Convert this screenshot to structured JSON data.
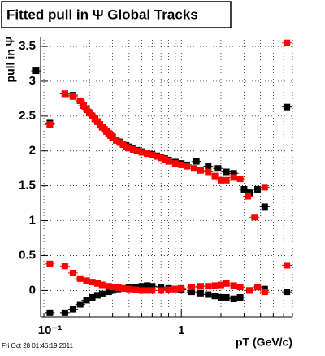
{
  "chart_data": {
    "type": "scatter",
    "title": "Fitted pull in Ψ   Global Tracks",
    "y_label": "pull in Ψ",
    "x_label": "pT (GeV/c)",
    "timestamp": "Fri Oct 28 01:46:19 2011",
    "x_log": true,
    "grid": true,
    "xlim": [
      0.085,
      7
    ],
    "ylim": [
      -0.38,
      3.64
    ],
    "xticks": [
      {
        "value": 0.1,
        "label": "10⁻¹"
      },
      1
    ],
    "xminor": [
      0.09,
      0.2,
      0.3,
      0.4,
      0.5,
      0.6,
      0.7,
      0.8,
      0.9,
      2,
      3,
      4,
      5,
      6,
      7
    ],
    "yticks": [
      0,
      0.5,
      1,
      1.5,
      2,
      2.5,
      3,
      3.5
    ],
    "series": [
      {
        "color": "#000000",
        "x": [
          0.0785,
          0.1,
          0.13,
          0.15,
          0.17,
          0.18,
          0.19,
          0.2,
          0.21,
          0.22,
          0.23,
          0.24,
          0.25,
          0.26,
          0.27,
          0.28,
          0.29,
          0.3,
          0.32,
          0.34,
          0.36,
          0.38,
          0.4,
          0.43,
          0.46,
          0.5,
          0.55,
          0.6,
          0.65,
          0.7,
          0.75,
          0.8,
          0.9,
          1.0,
          1.1,
          1.3,
          1.6,
          1.9,
          2.2,
          2.5,
          3.0,
          3.3,
          3.8,
          4.3,
          6.35,
          0.1,
          0.13,
          0.15,
          0.17,
          0.19,
          0.21,
          0.23,
          0.25,
          0.28,
          0.3,
          0.33,
          0.36,
          0.4,
          0.45,
          0.5,
          0.55,
          0.6,
          0.7,
          0.8,
          0.9,
          1.0,
          1.2,
          1.4,
          1.6,
          1.8,
          2.0,
          2.2,
          2.5,
          2.8,
          3.3,
          3.8,
          4.3,
          6.35
        ],
        "values": [
          3.15,
          2.4,
          2.82,
          2.8,
          2.72,
          2.65,
          2.6,
          2.55,
          2.5,
          2.46,
          2.42,
          2.38,
          2.34,
          2.31,
          2.28,
          2.25,
          2.22,
          2.2,
          2.16,
          2.13,
          2.1,
          2.08,
          2.06,
          2.03,
          2.01,
          1.99,
          1.97,
          1.95,
          1.93,
          1.91,
          1.89,
          1.87,
          1.84,
          1.82,
          1.8,
          1.85,
          1.78,
          1.75,
          1.7,
          1.68,
          1.45,
          1.4,
          1.45,
          1.2,
          2.63,
          -0.32,
          -0.32,
          -0.27,
          -0.2,
          -0.14,
          -0.1,
          -0.07,
          -0.05,
          -0.02,
          0,
          0.02,
          0.03,
          0.04,
          0.05,
          0.06,
          0.07,
          0.06,
          0.05,
          0.03,
          0.02,
          0.01,
          -0.02,
          -0.04,
          -0.06,
          -0.08,
          -0.1,
          -0.1,
          -0.12,
          -0.1,
          0,
          0.05,
          0.02,
          -0.02
        ]
      },
      {
        "color": "#ff0000",
        "x": [
          0.1,
          0.13,
          0.15,
          0.17,
          0.18,
          0.19,
          0.2,
          0.21,
          0.22,
          0.23,
          0.24,
          0.25,
          0.26,
          0.27,
          0.28,
          0.29,
          0.3,
          0.32,
          0.34,
          0.36,
          0.38,
          0.4,
          0.43,
          0.46,
          0.5,
          0.55,
          0.6,
          0.65,
          0.7,
          0.75,
          0.8,
          0.9,
          1.0,
          1.1,
          1.25,
          1.4,
          1.6,
          1.8,
          2.0,
          2.2,
          2.5,
          2.8,
          3.2,
          3.6,
          4.3,
          6.35,
          0.1,
          0.13,
          0.15,
          0.17,
          0.19,
          0.21,
          0.23,
          0.25,
          0.28,
          0.3,
          0.33,
          0.36,
          0.4,
          0.45,
          0.5,
          0.55,
          0.6,
          0.7,
          0.8,
          0.9,
          1.0,
          1.2,
          1.4,
          1.6,
          1.8,
          2.0,
          2.2,
          2.5,
          2.8,
          3.3,
          3.8,
          4.3,
          6.35
        ],
        "values": [
          2.38,
          2.82,
          2.78,
          2.72,
          2.65,
          2.6,
          2.55,
          2.5,
          2.46,
          2.42,
          2.38,
          2.34,
          2.31,
          2.28,
          2.25,
          2.22,
          2.19,
          2.15,
          2.12,
          2.09,
          2.06,
          2.04,
          2.02,
          2.0,
          1.98,
          1.96,
          1.94,
          1.92,
          1.9,
          1.88,
          1.85,
          1.82,
          1.8,
          1.78,
          1.75,
          1.72,
          1.7,
          1.64,
          1.58,
          1.58,
          1.62,
          1.6,
          1.35,
          1.05,
          1.48,
          3.55,
          0.38,
          0.35,
          0.25,
          0.17,
          0.14,
          0.12,
          0.1,
          0.08,
          0.06,
          0.05,
          0.04,
          0.03,
          0.02,
          0.01,
          0,
          0,
          0,
          0,
          0.01,
          0.02,
          0.03,
          0.05,
          0.06,
          0.06,
          0.07,
          0.08,
          0.1,
          0.07,
          0.05,
          0,
          0.05,
          -0.02,
          0.36
        ]
      }
    ]
  }
}
